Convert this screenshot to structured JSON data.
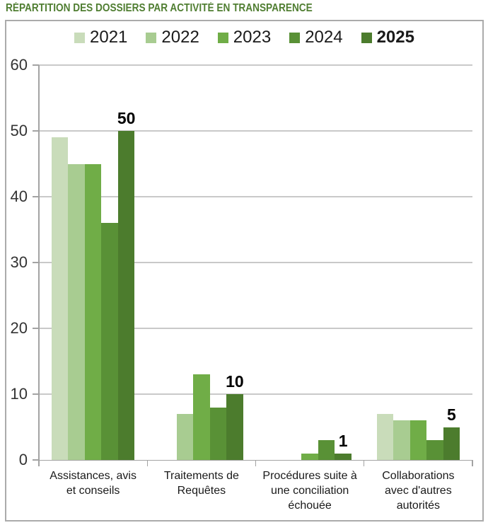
{
  "title": {
    "text": "RÉPARTITION DES DOSSIERS PAR ACTIVITÉ EN TRANSPARENCE",
    "color": "#507e32"
  },
  "chart_data": {
    "type": "bar",
    "title": "RÉPARTITION DES DOSSIERS PAR ACTIVITÉ EN TRANSPARENCE",
    "categories": [
      "Assistances, avis et conseils",
      "Traitements de Requêtes",
      "Procédures suite à une conciliation échouée",
      "Collaborations avec d'autres autorités"
    ],
    "categories_wrapped": [
      [
        "Assistances, avis",
        "et conseils"
      ],
      [
        "Traitements de",
        "Requêtes"
      ],
      [
        "Procédures suite à",
        "une conciliation",
        "échouée"
      ],
      [
        "Collaborations",
        "avec d'autres",
        "autorités"
      ]
    ],
    "series": [
      {
        "name": "2021",
        "color": "#c9dcba",
        "values": [
          49,
          0,
          0,
          7
        ]
      },
      {
        "name": "2022",
        "color": "#a8cc91",
        "values": [
          45,
          7,
          0,
          6
        ]
      },
      {
        "name": "2023",
        "color": "#70ad47",
        "values": [
          45,
          13,
          1,
          6
        ]
      },
      {
        "name": "2024",
        "color": "#599136",
        "values": [
          36,
          8,
          3,
          3
        ]
      },
      {
        "name": "2025",
        "color": "#4c7c2d",
        "values": [
          50,
          10,
          1,
          5
        ],
        "legend_bold": true
      }
    ],
    "data_labels": {
      "series": "2025",
      "values": [
        50,
        10,
        1,
        5
      ]
    },
    "ylim": [
      0,
      60
    ],
    "yticks": [
      0,
      10,
      20,
      30,
      40,
      50,
      60
    ],
    "grid": true,
    "legend_position": "top",
    "grid_color": "#c9c9c9",
    "axis_color": "#a3a3a3"
  }
}
